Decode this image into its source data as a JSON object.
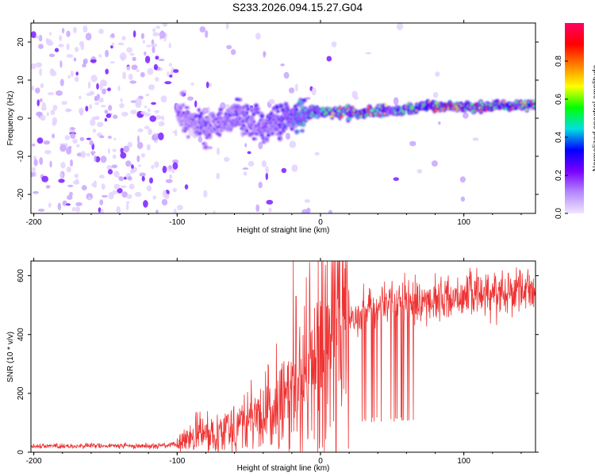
{
  "figure": {
    "title": "S233.2026.094.15.27.G04"
  },
  "chart_data": [
    {
      "type": "heatmap",
      "title": "S233.2026.094.15.27.G04",
      "xlabel": "Height of straight line (km)",
      "ylabel": "Frequency (Hz)",
      "xlim": [
        -202,
        150
      ],
      "ylim": [
        -25,
        25
      ],
      "xticks": [
        -200,
        -100,
        0,
        100
      ],
      "yticks": [
        -20,
        -10,
        0,
        10,
        20
      ],
      "xtick_labels": [
        "-200",
        "-100",
        "0",
        "100"
      ],
      "ytick_labels": [
        "-20",
        "-10",
        "0",
        "10",
        "20"
      ],
      "colorbar": {
        "label": "Normalized spectral amplitude",
        "range": [
          0,
          1
        ],
        "ticks": [
          0.0,
          0.2,
          0.4,
          0.6,
          0.8
        ],
        "tick_labels": [
          "0.0",
          "0.2",
          "0.4",
          "0.6",
          "0.8"
        ],
        "colormap": [
          "#f0e6ff",
          "#b488ff",
          "#7a00ff",
          "#0000ff",
          "#00e0e0",
          "#00ff00",
          "#ffff00",
          "#ff8000",
          "#ff0000",
          "#ff0066"
        ]
      },
      "ridge": {
        "description": "Doppler ridge frequency vs height",
        "x": [
          -100,
          -90,
          -80,
          -70,
          -60,
          -50,
          -40,
          -30,
          -20,
          -10,
          0,
          10,
          20,
          30,
          40,
          50,
          60,
          70,
          80,
          90,
          100,
          110,
          120,
          130,
          140,
          150
        ],
        "frequency": [
          2,
          -1,
          -3,
          -1,
          1,
          -1,
          -2,
          -1,
          0,
          1,
          1.5,
          1.5,
          1.5,
          1.6,
          2,
          2.2,
          2.5,
          2.7,
          3,
          3.2,
          2.8,
          3,
          3.2,
          3.3,
          3.5,
          3.5
        ],
        "amplitude": [
          0.2,
          0.25,
          0.3,
          0.28,
          0.3,
          0.3,
          0.3,
          0.35,
          0.45,
          0.55,
          0.7,
          0.75,
          0.8,
          0.82,
          0.8,
          0.6,
          0.85,
          0.88,
          0.9,
          0.92,
          0.85,
          0.88,
          0.9,
          0.9,
          0.92,
          0.92
        ]
      }
    },
    {
      "type": "line",
      "xlabel": "Height of straight line (km)",
      "ylabel": "SNR (10 * v/v)",
      "xlim": [
        -202,
        150
      ],
      "ylim": [
        0,
        650
      ],
      "xticks": [
        -200,
        -100,
        0,
        100
      ],
      "yticks": [
        0,
        200,
        400,
        600
      ],
      "xtick_labels": [
        "-200",
        "-100",
        "0",
        "100"
      ],
      "ytick_labels": [
        "0",
        "200",
        "400",
        "600"
      ],
      "color": "#ee3333",
      "series": [
        {
          "name": "SNR",
          "x": [
            -202,
            -190,
            -180,
            -170,
            -160,
            -150,
            -140,
            -130,
            -120,
            -110,
            -100,
            -95,
            -90,
            -85,
            -80,
            -75,
            -70,
            -65,
            -60,
            -55,
            -50,
            -45,
            -40,
            -35,
            -30,
            -25,
            -20,
            -15,
            -10,
            -5,
            0,
            5,
            10,
            15,
            20,
            25,
            30,
            35,
            40,
            45,
            50,
            55,
            60,
            65,
            70,
            75,
            80,
            85,
            90,
            95,
            100,
            110,
            120,
            130,
            140,
            150
          ],
          "values": [
            20,
            22,
            21,
            20,
            22,
            21,
            22,
            21,
            22,
            23,
            25,
            40,
            50,
            60,
            60,
            70,
            80,
            90,
            90,
            100,
            110,
            120,
            120,
            130,
            150,
            170,
            200,
            230,
            270,
            300,
            320,
            360,
            400,
            440,
            460,
            470,
            480,
            490,
            490,
            500,
            500,
            505,
            505,
            510,
            510,
            515,
            520,
            520,
            525,
            530,
            535,
            540,
            545,
            550,
            555,
            560
          ]
        }
      ]
    }
  ]
}
